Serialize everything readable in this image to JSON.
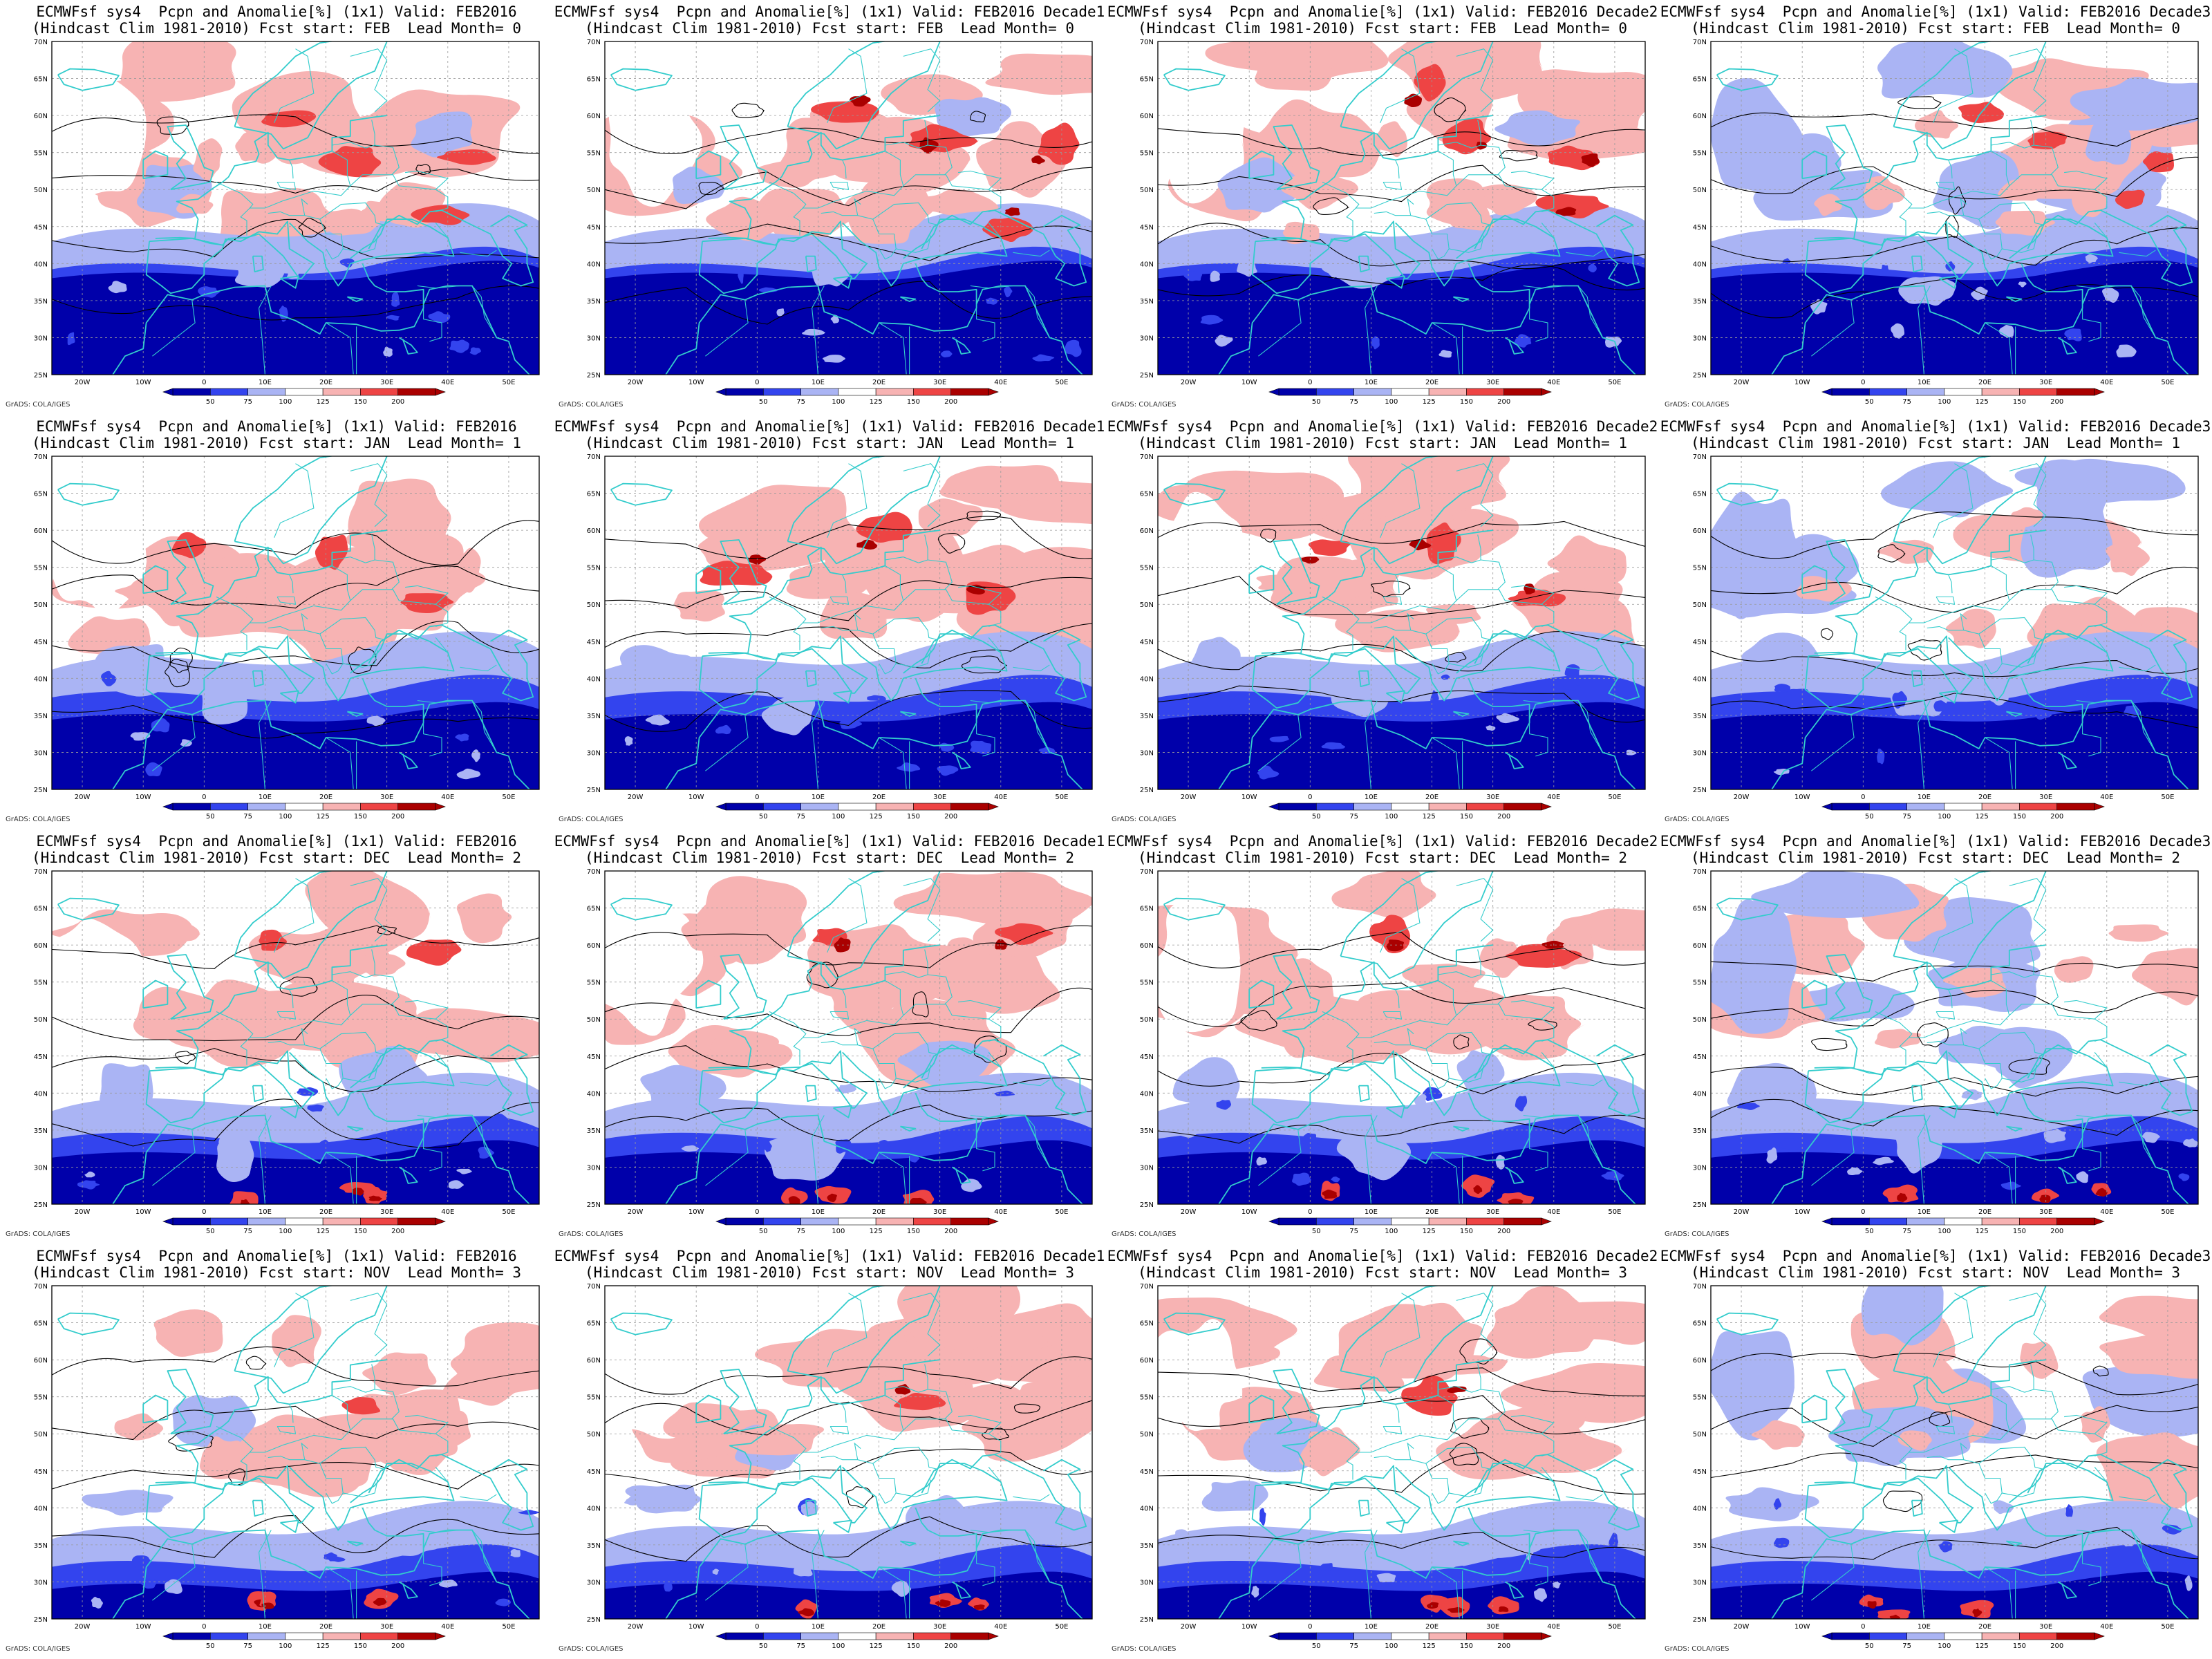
{
  "model": "ECMWFsf sys4",
  "header_line1_prefix": "ECMWFsf sys4  Pcpn and Anomalie[%] (1x1) Valid:",
  "header_line2_prefix": "(Hindcast Clim 1981-2010) Fcst start:",
  "credit": "GrADS: COLA/IGES",
  "valid_labels": [
    "FEB2016",
    "FEB2016 Decade1",
    "FEB2016 Decade2",
    "FEB2016 Decade3"
  ],
  "rows": [
    {
      "fcst_start": "FEB",
      "lead_month": "0"
    },
    {
      "fcst_start": "JAN",
      "lead_month": "1"
    },
    {
      "fcst_start": "DEC",
      "lead_month": "2"
    },
    {
      "fcst_start": "NOV",
      "lead_month": "3"
    }
  ],
  "panels": [
    {
      "line1": "ECMWFsf sys4  Pcpn and Anomalie[%] (1x1) Valid: FEB2016",
      "line2": "(Hindcast Clim 1981-2010) Fcst start: FEB  Lead Month= 0"
    },
    {
      "line1": "ECMWFsf sys4  Pcpn and Anomalie[%] (1x1) Valid: FEB2016 Decade1",
      "line2": "(Hindcast Clim 1981-2010) Fcst start: FEB  Lead Month= 0"
    },
    {
      "line1": "ECMWFsf sys4  Pcpn and Anomalie[%] (1x1) Valid: FEB2016 Decade2",
      "line2": "(Hindcast Clim 1981-2010) Fcst start: FEB  Lead Month= 0"
    },
    {
      "line1": "ECMWFsf sys4  Pcpn and Anomalie[%] (1x1) Valid: FEB2016 Decade3",
      "line2": "(Hindcast Clim 1981-2010) Fcst start: FEB  Lead Month= 0"
    },
    {
      "line1": "ECMWFsf sys4  Pcpn and Anomalie[%] (1x1) Valid: FEB2016",
      "line2": "(Hindcast Clim 1981-2010) Fcst start: JAN  Lead Month= 1"
    },
    {
      "line1": "ECMWFsf sys4  Pcpn and Anomalie[%] (1x1) Valid: FEB2016 Decade1",
      "line2": "(Hindcast Clim 1981-2010) Fcst start: JAN  Lead Month= 1"
    },
    {
      "line1": "ECMWFsf sys4  Pcpn and Anomalie[%] (1x1) Valid: FEB2016 Decade2",
      "line2": "(Hindcast Clim 1981-2010) Fcst start: JAN  Lead Month= 1"
    },
    {
      "line1": "ECMWFsf sys4  Pcpn and Anomalie[%] (1x1) Valid: FEB2016 Decade3",
      "line2": "(Hindcast Clim 1981-2010) Fcst start: JAN  Lead Month= 1"
    },
    {
      "line1": "ECMWFsf sys4  Pcpn and Anomalie[%] (1x1) Valid: FEB2016",
      "line2": "(Hindcast Clim 1981-2010) Fcst start: DEC  Lead Month= 2"
    },
    {
      "line1": "ECMWFsf sys4  Pcpn and Anomalie[%] (1x1) Valid: FEB2016 Decade1",
      "line2": "(Hindcast Clim 1981-2010) Fcst start: DEC  Lead Month= 2"
    },
    {
      "line1": "ECMWFsf sys4  Pcpn and Anomalie[%] (1x1) Valid: FEB2016 Decade2",
      "line2": "(Hindcast Clim 1981-2010) Fcst start: DEC  Lead Month= 2"
    },
    {
      "line1": "ECMWFsf sys4  Pcpn and Anomalie[%] (1x1) Valid: FEB2016 Decade3",
      "line2": "(Hindcast Clim 1981-2010) Fcst start: DEC  Lead Month= 2"
    },
    {
      "line1": "ECMWFsf sys4  Pcpn and Anomalie[%] (1x1) Valid: FEB2016",
      "line2": "(Hindcast Clim 1981-2010) Fcst start: NOV  Lead Month= 3"
    },
    {
      "line1": "ECMWFsf sys4  Pcpn and Anomalie[%] (1x1) Valid: FEB2016 Decade1",
      "line2": "(Hindcast Clim 1981-2010) Fcst start: NOV  Lead Month= 3"
    },
    {
      "line1": "ECMWFsf sys4  Pcpn and Anomalie[%] (1x1) Valid: FEB2016 Decade2",
      "line2": "(Hindcast Clim 1981-2010) Fcst start: NOV  Lead Month= 3"
    },
    {
      "line1": "ECMWFsf sys4  Pcpn and Anomalie[%] (1x1) Valid: FEB2016 Decade3",
      "line2": "(Hindcast Clim 1981-2010) Fcst start: NOV  Lead Month= 3"
    }
  ],
  "map": {
    "lon_range": [
      -25,
      55
    ],
    "lat_range": [
      25,
      70
    ],
    "lon_ticks": [
      "20W",
      "10W",
      "0",
      "10E",
      "20E",
      "30E",
      "40E",
      "50E"
    ],
    "lat_ticks": [
      "70N",
      "65N",
      "60N",
      "55N",
      "50N",
      "45N",
      "40N",
      "35N",
      "30N",
      "25N"
    ],
    "grid": "dashed",
    "coastline_color": "#33cccc",
    "contour_color": "#000000"
  },
  "colorbar": {
    "labels": [
      "50",
      "75",
      "100",
      "125",
      "150",
      "200"
    ],
    "colors": [
      "#0000aa",
      "#3344ee",
      "#aab4f4",
      "#ffffff",
      "#f7b3b3",
      "#ee4444",
      "#aa0000"
    ]
  },
  "anomaly_colors": {
    "deep_dry": "#0000aa",
    "dry": "#3344ee",
    "light_dry": "#aab4f4",
    "neutral": "#ffffff",
    "light_wet": "#f7b3b3",
    "wet": "#ee4444",
    "deep_wet": "#aa0000"
  }
}
